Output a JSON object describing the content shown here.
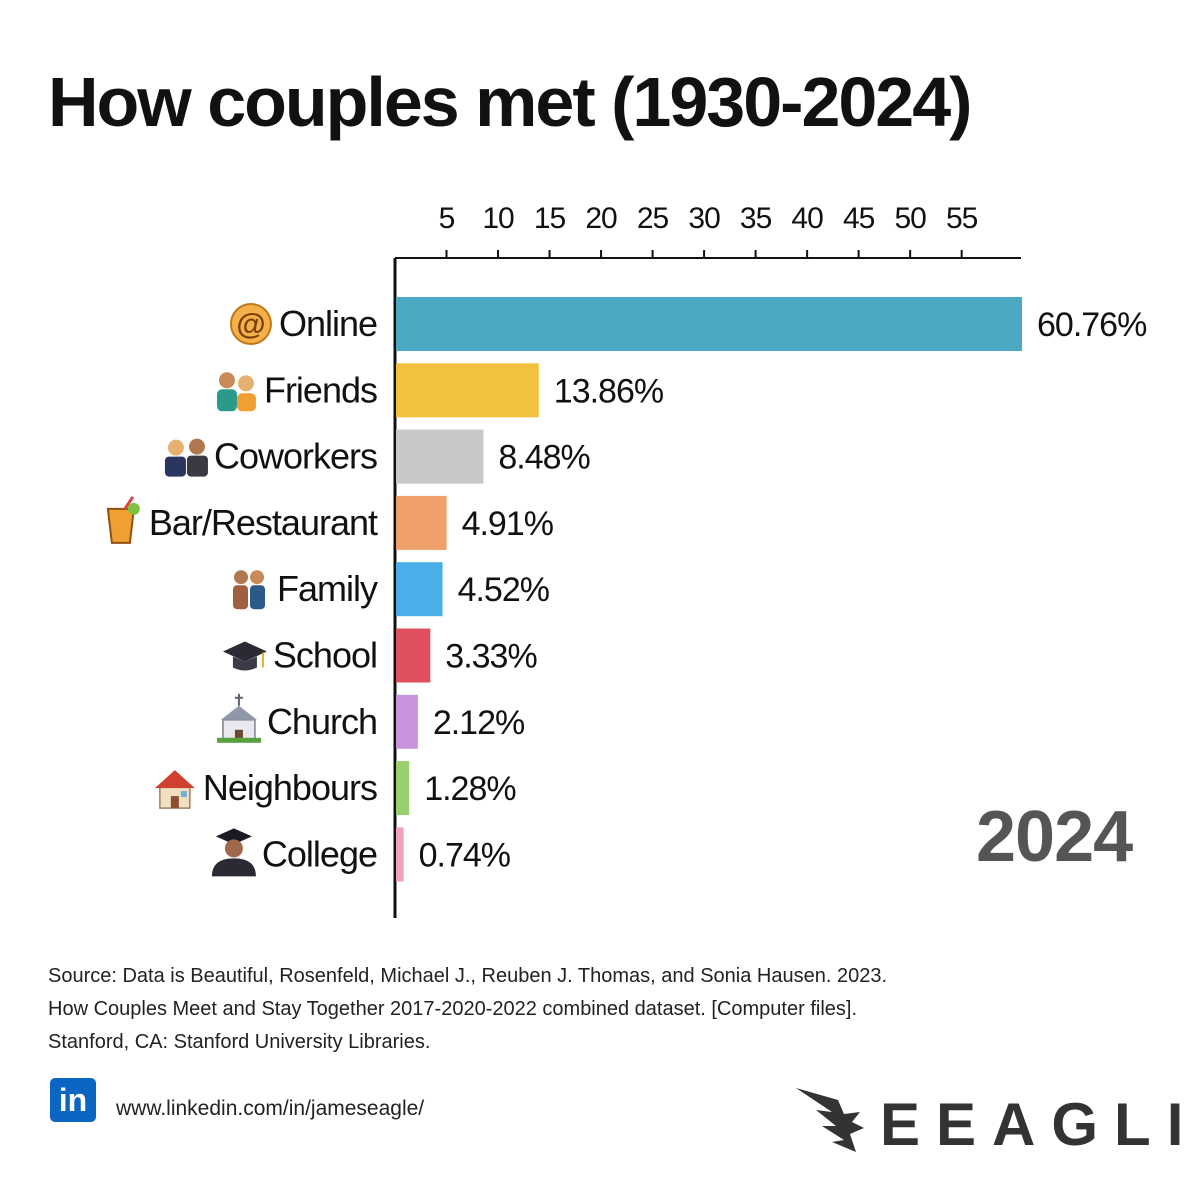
{
  "chart_data": {
    "type": "bar",
    "orientation": "horizontal",
    "title": "How couples met (1930-2024)",
    "categories": [
      "Online",
      "Friends",
      "Coworkers",
      "Bar/Restaurant",
      "Family",
      "School",
      "Church",
      "Neighbours",
      "College"
    ],
    "values": [
      60.76,
      13.86,
      8.48,
      4.91,
      4.52,
      3.33,
      2.12,
      1.28,
      0.74
    ],
    "value_labels": [
      "60.76%",
      "13.86%",
      "8.48%",
      "4.91%",
      "4.52%",
      "3.33%",
      "2.12%",
      "1.28%",
      "0.74%"
    ],
    "colors": [
      "#4aa8c0",
      "#f2c23e",
      "#c8c8c8",
      "#f0a06a",
      "#4aaee8",
      "#e0505e",
      "#c994dc",
      "#98d070",
      "#f0a0c0"
    ],
    "icons": [
      "at-sign-icon",
      "friends-icon",
      "coworkers-icon",
      "drink-icon",
      "family-icon",
      "graduation-cap-icon",
      "church-icon",
      "house-icon",
      "graduate-icon"
    ],
    "x_ticks": [
      5,
      10,
      15,
      20,
      25,
      30,
      35,
      40,
      45,
      50,
      55
    ],
    "x_axis_position": "top",
    "xlim": [
      0,
      60.76
    ],
    "xlabel": "",
    "ylabel": "",
    "grid": false,
    "year_label": "2024"
  },
  "source_lines": [
    "Source: Data is Beautiful, Rosenfeld, Michael J., Reuben J. Thomas, and Sonia Hausen. 2023.",
    "How Couples Meet and Stay Together 2017-2020-2022 combined dataset. [Computer files].",
    "Stanford, CA: Stanford University Libraries."
  ],
  "footer": {
    "linkedin_icon_text": "in",
    "linkedin_url": "www.linkedin.com/in/jameseagle/",
    "brand": "EEAGLI"
  }
}
